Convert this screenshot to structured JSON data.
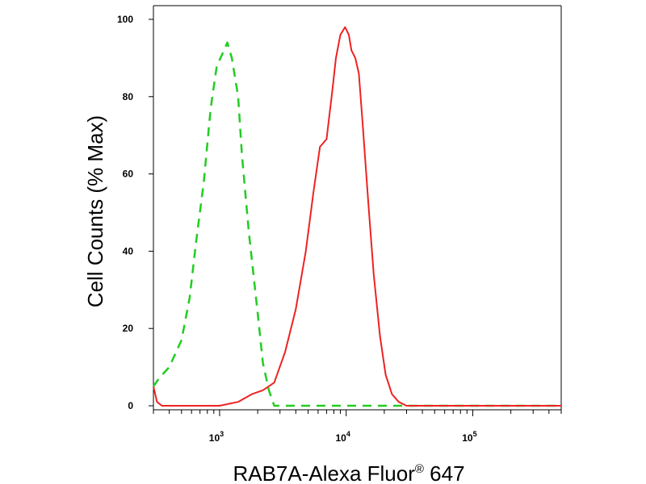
{
  "chart_data": {
    "type": "line",
    "xlabel": "RAB7A-Alexa Fluor",
    "xlabel_sup": "®",
    "xlabel_suffix": " 647",
    "ylabel": "Cell Counts (% Max)",
    "x_scale": "log",
    "xlim": [
      300,
      500000
    ],
    "ylim": [
      0,
      100
    ],
    "grid": false,
    "yticks": [
      0,
      20,
      40,
      60,
      80,
      100
    ],
    "xticks": [
      {
        "value": 1000,
        "base": "10",
        "exp": "3"
      },
      {
        "value": 10000,
        "base": "10",
        "exp": "4"
      },
      {
        "value": 100000,
        "base": "10",
        "exp": "5"
      }
    ],
    "series": [
      {
        "color": "#22cc22",
        "style": "dashed",
        "x": [
          300,
          330,
          400,
          500,
          580,
          650,
          750,
          850,
          950,
          1050,
          1150,
          1250,
          1400,
          1500,
          1700,
          2000,
          2200,
          2450,
          2700,
          3000,
          5000,
          20000,
          100000,
          500000
        ],
        "y": [
          5,
          7,
          10,
          17,
          28,
          42,
          58,
          77,
          88,
          91,
          94,
          90,
          80,
          65,
          45,
          24,
          11,
          4,
          0,
          0,
          0,
          0,
          0,
          0
        ]
      },
      {
        "color": "#ee2222",
        "style": "solid",
        "x": [
          300,
          320,
          350,
          500,
          1000,
          1400,
          1800,
          2200,
          2700,
          3300,
          4000,
          4800,
          5500,
          6200,
          7000,
          7800,
          8300,
          9000,
          9800,
          10500,
          11000,
          11800,
          12600,
          13500,
          15000,
          16500,
          18500,
          20500,
          23000,
          26000,
          30000,
          40000,
          100000,
          500000
        ],
        "y": [
          5,
          1,
          0,
          0,
          0,
          1,
          3,
          4,
          6,
          14,
          25,
          40,
          55,
          67,
          69,
          82,
          90,
          96,
          98,
          96,
          92,
          90,
          86,
          73,
          52,
          34,
          18,
          8,
          3,
          1,
          0,
          0,
          0,
          0
        ]
      }
    ]
  }
}
